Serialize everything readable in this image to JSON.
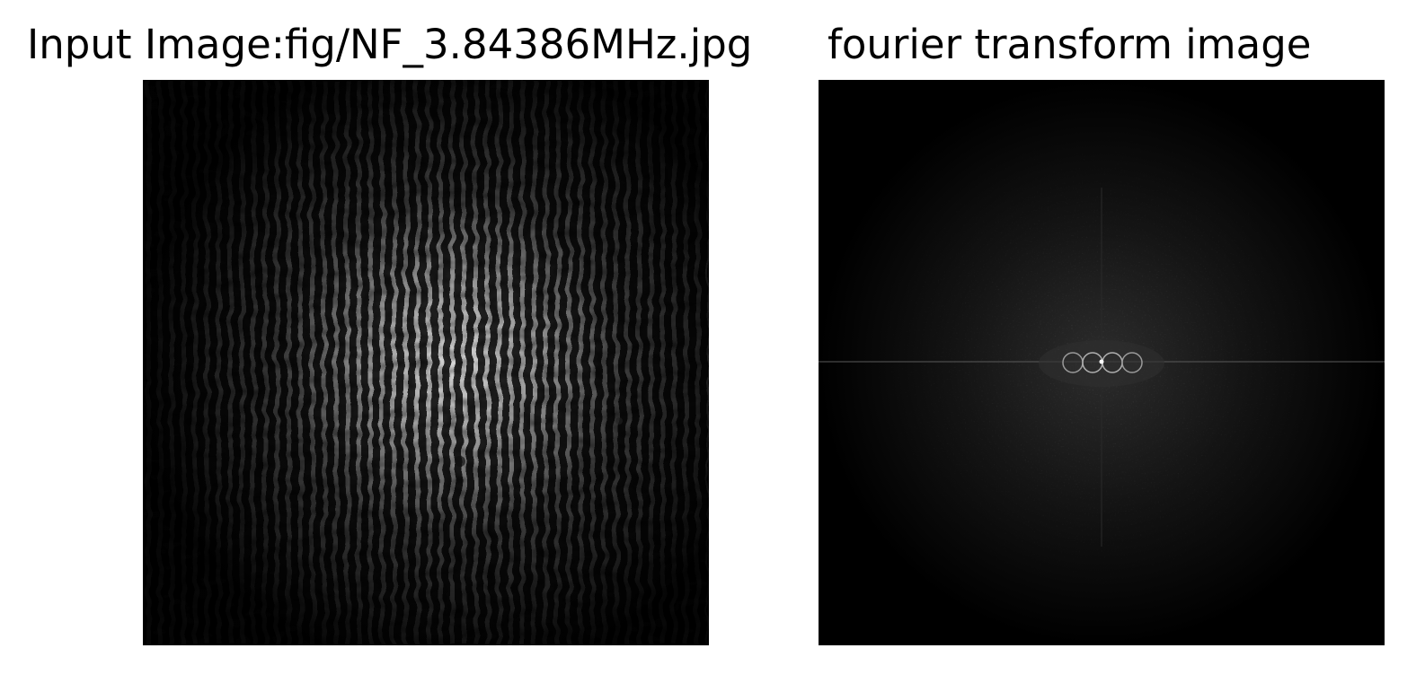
{
  "figure": {
    "left_title": "Input Image:fig/NF_3.84386MHz.jpg",
    "right_title": "fourier transform image"
  },
  "colors": {
    "background": "#ffffff",
    "panel_background": "#000000",
    "text": "#000000"
  }
}
